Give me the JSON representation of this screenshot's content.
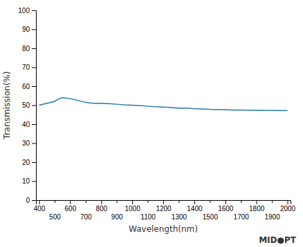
{
  "chart_data": {
    "type": "line",
    "xlabel": "Wavelength(nm)",
    "ylabel": "Transmission(%)",
    "x": [
      400,
      450,
      500,
      530,
      550,
      600,
      650,
      700,
      750,
      800,
      850,
      900,
      950,
      1000,
      1050,
      1100,
      1150,
      1200,
      1250,
      1300,
      1350,
      1400,
      1450,
      1500,
      1550,
      1600,
      1650,
      1700,
      1750,
      1800,
      1850,
      1900,
      1950,
      2000
    ],
    "values": [
      50,
      51,
      52,
      53.5,
      54,
      53.5,
      52.5,
      51.5,
      51,
      51,
      50.8,
      50.5,
      50.2,
      50.0,
      49.8,
      49.5,
      49.2,
      49.0,
      48.8,
      48.5,
      48.5,
      48.2,
      48.0,
      47.8,
      47.7,
      47.6,
      47.5,
      47.5,
      47.4,
      47.4,
      47.3,
      47.3,
      47.2,
      47.2
    ],
    "xlim": [
      380,
      2020
    ],
    "ylim": [
      0,
      100
    ],
    "xticks": [
      400,
      500,
      600,
      700,
      800,
      900,
      1000,
      1100,
      1200,
      1300,
      1400,
      1500,
      1600,
      1700,
      1800,
      1900,
      2000
    ],
    "yticks": [
      0,
      10,
      20,
      30,
      40,
      50,
      60,
      70,
      80,
      90,
      100
    ],
    "grid": false,
    "annotations": [
      {
        "text": "MID"
      },
      {
        "text": "●"
      },
      {
        "text": "PT"
      }
    ]
  }
}
